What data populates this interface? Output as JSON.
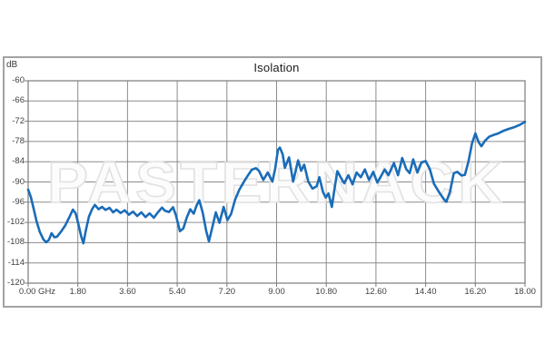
{
  "chart_data": {
    "type": "line",
    "title": "Isolation",
    "y_unit_label": "dB",
    "x_unit": "GHz",
    "xlim": [
      0,
      18
    ],
    "ylim": [
      -120,
      -60
    ],
    "grid": true,
    "legend": "none",
    "watermark": "PASTERNACK",
    "x_tick_labels": [
      "0.00 GHz",
      "1.80",
      "3.60",
      "5.40",
      "7.20",
      "9.00",
      "10.80",
      "12.60",
      "14.40",
      "16.20",
      "18.00"
    ],
    "x_tick_values": [
      0,
      1.8,
      3.6,
      5.4,
      7.2,
      9.0,
      10.8,
      12.6,
      14.4,
      16.2,
      18.0
    ],
    "y_tick_values": [
      -60,
      -66,
      -72,
      -78,
      -84,
      -90,
      -96,
      -102,
      -108,
      -114,
      -120
    ],
    "series": [
      {
        "name": "Isolation",
        "color": "#1a6cb8",
        "points": [
          [
            0.0,
            -92.3
          ],
          [
            0.1,
            -94.5
          ],
          [
            0.2,
            -98.0
          ],
          [
            0.3,
            -101.5
          ],
          [
            0.42,
            -104.8
          ],
          [
            0.55,
            -107.0
          ],
          [
            0.65,
            -107.9
          ],
          [
            0.75,
            -107.2
          ],
          [
            0.85,
            -105.2
          ],
          [
            0.95,
            -106.4
          ],
          [
            1.05,
            -106.2
          ],
          [
            1.2,
            -104.6
          ],
          [
            1.35,
            -102.8
          ],
          [
            1.5,
            -100.3
          ],
          [
            1.62,
            -98.2
          ],
          [
            1.72,
            -99.3
          ],
          [
            1.82,
            -102.5
          ],
          [
            1.92,
            -106.0
          ],
          [
            2.0,
            -108.2
          ],
          [
            2.1,
            -104.0
          ],
          [
            2.2,
            -100.3
          ],
          [
            2.32,
            -98.0
          ],
          [
            2.42,
            -96.8
          ],
          [
            2.55,
            -98.1
          ],
          [
            2.68,
            -97.4
          ],
          [
            2.8,
            -98.3
          ],
          [
            2.95,
            -97.7
          ],
          [
            3.08,
            -99.0
          ],
          [
            3.2,
            -98.2
          ],
          [
            3.35,
            -99.2
          ],
          [
            3.5,
            -98.4
          ],
          [
            3.65,
            -99.7
          ],
          [
            3.8,
            -98.8
          ],
          [
            3.95,
            -100.1
          ],
          [
            4.1,
            -99.0
          ],
          [
            4.25,
            -100.4
          ],
          [
            4.4,
            -99.3
          ],
          [
            4.55,
            -100.6
          ],
          [
            4.7,
            -99.0
          ],
          [
            4.85,
            -97.6
          ],
          [
            4.95,
            -98.5
          ],
          [
            5.1,
            -98.9
          ],
          [
            5.25,
            -97.5
          ],
          [
            5.35,
            -99.8
          ],
          [
            5.5,
            -104.6
          ],
          [
            5.62,
            -103.8
          ],
          [
            5.75,
            -100.5
          ],
          [
            5.87,
            -98.1
          ],
          [
            6.0,
            -99.4
          ],
          [
            6.1,
            -97.0
          ],
          [
            6.2,
            -95.4
          ],
          [
            6.32,
            -99.0
          ],
          [
            6.45,
            -104.5
          ],
          [
            6.55,
            -107.6
          ],
          [
            6.67,
            -103.5
          ],
          [
            6.8,
            -99.0
          ],
          [
            6.93,
            -102.1
          ],
          [
            7.08,
            -97.4
          ],
          [
            7.22,
            -101.3
          ],
          [
            7.35,
            -99.5
          ],
          [
            7.5,
            -95.2
          ],
          [
            7.65,
            -92.3
          ],
          [
            7.8,
            -90.2
          ],
          [
            7.95,
            -88.2
          ],
          [
            8.1,
            -86.4
          ],
          [
            8.25,
            -85.9
          ],
          [
            8.36,
            -86.7
          ],
          [
            8.52,
            -89.4
          ],
          [
            8.68,
            -87.2
          ],
          [
            8.85,
            -89.9
          ],
          [
            8.95,
            -86.0
          ],
          [
            9.05,
            -80.5
          ],
          [
            9.12,
            -79.8
          ],
          [
            9.22,
            -81.8
          ],
          [
            9.3,
            -85.8
          ],
          [
            9.45,
            -82.7
          ],
          [
            9.6,
            -89.9
          ],
          [
            9.78,
            -83.6
          ],
          [
            9.89,
            -86.7
          ],
          [
            10.0,
            -84.9
          ],
          [
            10.15,
            -89.9
          ],
          [
            10.3,
            -92.0
          ],
          [
            10.45,
            -91.3
          ],
          [
            10.55,
            -88.6
          ],
          [
            10.68,
            -93.0
          ],
          [
            10.78,
            -94.6
          ],
          [
            10.88,
            -93.4
          ],
          [
            11.0,
            -97.4
          ],
          [
            11.1,
            -92.0
          ],
          [
            11.2,
            -86.8
          ],
          [
            11.32,
            -88.6
          ],
          [
            11.45,
            -90.4
          ],
          [
            11.6,
            -88.0
          ],
          [
            11.75,
            -90.7
          ],
          [
            11.9,
            -87.2
          ],
          [
            12.05,
            -88.6
          ],
          [
            12.2,
            -86.3
          ],
          [
            12.35,
            -89.4
          ],
          [
            12.5,
            -87.0
          ],
          [
            12.65,
            -90.2
          ],
          [
            12.8,
            -88.0
          ],
          [
            12.92,
            -86.3
          ],
          [
            13.05,
            -88.0
          ],
          [
            13.25,
            -84.4
          ],
          [
            13.4,
            -88.0
          ],
          [
            13.55,
            -82.9
          ],
          [
            13.7,
            -86.2
          ],
          [
            13.82,
            -87.4
          ],
          [
            13.95,
            -83.3
          ],
          [
            14.1,
            -87.2
          ],
          [
            14.25,
            -84.2
          ],
          [
            14.4,
            -83.8
          ],
          [
            14.55,
            -86.2
          ],
          [
            14.7,
            -90.5
          ],
          [
            14.9,
            -93.2
          ],
          [
            15.05,
            -95.0
          ],
          [
            15.15,
            -95.9
          ],
          [
            15.28,
            -93.0
          ],
          [
            15.42,
            -87.4
          ],
          [
            15.55,
            -87.0
          ],
          [
            15.7,
            -88.1
          ],
          [
            15.82,
            -87.9
          ],
          [
            15.95,
            -84.0
          ],
          [
            16.08,
            -78.5
          ],
          [
            16.2,
            -75.6
          ],
          [
            16.32,
            -78.2
          ],
          [
            16.42,
            -79.4
          ],
          [
            16.55,
            -77.8
          ],
          [
            16.7,
            -76.6
          ],
          [
            16.85,
            -76.1
          ],
          [
            17.0,
            -75.7
          ],
          [
            17.2,
            -74.9
          ],
          [
            17.4,
            -74.3
          ],
          [
            17.6,
            -73.8
          ],
          [
            17.8,
            -73.1
          ],
          [
            18.0,
            -72.2
          ]
        ]
      }
    ]
  },
  "colors": {
    "grid": "#8c8c8c",
    "axis_border": "#7a7a7a",
    "tick": "#7a7a7a",
    "label": "#3f3f3f",
    "title": "#1c1c1c",
    "frame_border": "#a3a3a3",
    "watermark_outline": "#e2e2e2",
    "watermark_fill": "#fcfcfc",
    "line": "#1a6cb8",
    "background": "#ffffff"
  }
}
